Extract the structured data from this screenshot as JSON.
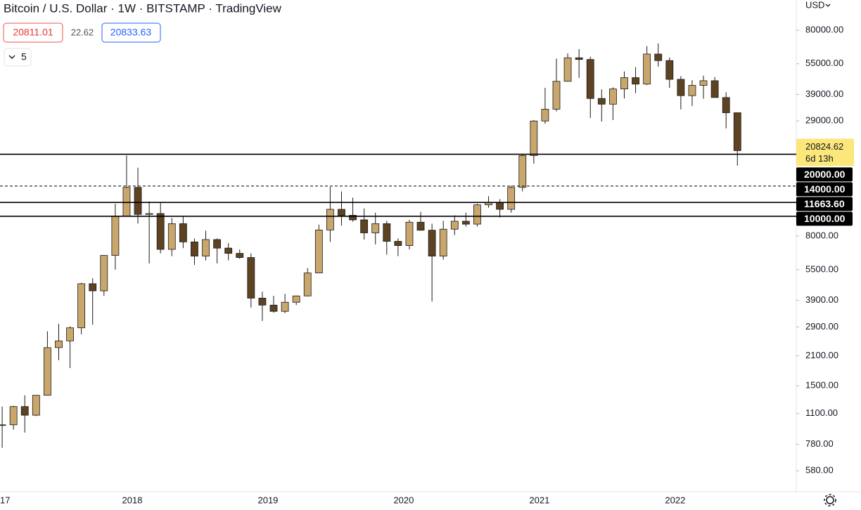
{
  "header": {
    "title": "Bitcoin / U.S. Dollar · 1W · BITSTAMP · TradingView",
    "bid": "20811.01",
    "spread": "22.62",
    "ask": "20833.63",
    "indicator_count": "5",
    "currency": "USD"
  },
  "chart_data": {
    "type": "candlestick",
    "log_scale": true,
    "up_color": "#c9a66b",
    "down_color": "#5e4322",
    "wick_color": "#1a1a1a",
    "categories": [
      "17",
      null,
      null,
      null,
      null,
      null,
      null,
      null,
      null,
      null,
      null,
      null,
      "2018",
      null,
      null,
      null,
      null,
      null,
      null,
      null,
      null,
      null,
      null,
      null,
      "2019",
      null,
      null,
      null,
      null,
      null,
      null,
      null,
      null,
      null,
      null,
      null,
      "2020",
      null,
      null,
      null,
      null,
      null,
      null,
      null,
      null,
      null,
      null,
      null,
      "2021",
      null,
      null,
      null,
      null,
      null,
      null,
      null,
      null,
      null,
      null,
      null,
      "2022",
      null,
      null,
      null,
      null,
      null
    ],
    "open": [
      963,
      970,
      1190,
      1080,
      1350,
      2300,
      2480,
      2870,
      4700,
      4340,
      6450,
      10000,
      13800,
      10200,
      10300,
      6900,
      9200,
      7500,
      6400,
      7700,
      7000,
      6600,
      6300,
      4000,
      3700,
      3450,
      3820,
      4100,
      5300,
      8570,
      10800,
      10100,
      9600,
      8300,
      9200,
      7550,
      7200,
      9350,
      8550,
      6400,
      8650,
      9450,
      9150,
      11350,
      11650,
      10800,
      13800,
      19700,
      29000,
      33100,
      45200,
      58800,
      57700,
      37300,
      35000,
      41500,
      47100,
      43800,
      61300,
      57000,
      46200,
      38500,
      43200,
      45500,
      37700,
      31800
    ],
    "high": [
      1190,
      1200,
      1350,
      1350,
      2760,
      3000,
      2920,
      4750,
      5000,
      6470,
      11500,
      19700,
      17200,
      11800,
      11700,
      9800,
      10000,
      7800,
      8500,
      7800,
      7400,
      6900,
      6600,
      4300,
      4100,
      4200,
      4120,
      5600,
      9100,
      13900,
      13200,
      12300,
      10900,
      10400,
      9500,
      7800,
      9600,
      10500,
      9200,
      9500,
      10100,
      10400,
      11500,
      12500,
      12100,
      14100,
      19900,
      29300,
      42000,
      58300,
      61800,
      64800,
      59500,
      41300,
      42300,
      50500,
      52900,
      67000,
      69000,
      59000,
      47900,
      45800,
      48200,
      47400,
      40000,
      31900
    ],
    "low": [
      750,
      920,
      890,
      1070,
      1350,
      2000,
      1830,
      2670,
      2970,
      4100,
      5500,
      10000,
      9200,
      5900,
      6600,
      6400,
      7000,
      5800,
      6100,
      5900,
      6100,
      6200,
      3600,
      3100,
      3400,
      3380,
      3700,
      4080,
      5300,
      7500,
      9000,
      9400,
      7700,
      7300,
      6500,
      6400,
      6900,
      8500,
      3850,
      6150,
      8100,
      8900,
      8900,
      11000,
      9850,
      10400,
      13200,
      18000,
      28100,
      32300,
      45000,
      47000,
      30000,
      28800,
      29300,
      37300,
      39600,
      43300,
      53300,
      42000,
      33000,
      34300,
      37200,
      37700,
      26700,
      17600
    ],
    "close": [
      970,
      1190,
      1080,
      1350,
      2300,
      2480,
      2870,
      4700,
      4340,
      6450,
      10000,
      13800,
      10200,
      10300,
      6900,
      9200,
      7500,
      6400,
      7700,
      7000,
      6600,
      6300,
      4000,
      3700,
      3450,
      3820,
      4100,
      5300,
      8570,
      10800,
      10100,
      9600,
      8300,
      9200,
      7550,
      7200,
      9350,
      8550,
      6400,
      8650,
      9450,
      9150,
      11350,
      11650,
      10800,
      13800,
      19700,
      29000,
      33100,
      45200,
      58800,
      57700,
      37300,
      35000,
      41500,
      47100,
      43800,
      61300,
      57000,
      46200,
      38500,
      43200,
      45500,
      37700,
      31800,
      20824.62
    ],
    "countdown": "6d 13h",
    "ylim": [
      459,
      112200
    ],
    "yticks": [
      {
        "value": 80000,
        "label": "80000.00"
      },
      {
        "value": 55000,
        "label": "55000.00"
      },
      {
        "value": 39000,
        "label": "39000.00"
      },
      {
        "value": 29000,
        "label": "29000.00"
      },
      {
        "value": 8000,
        "label": "8000.00"
      },
      {
        "value": 5500,
        "label": "5500.00"
      },
      {
        "value": 3900,
        "label": "3900.00"
      },
      {
        "value": 2900,
        "label": "2900.00"
      },
      {
        "value": 2100,
        "label": "2100.00"
      },
      {
        "value": 1500,
        "label": "1500.00"
      },
      {
        "value": 1100,
        "label": "1100.00"
      },
      {
        "value": 780,
        "label": "780.00"
      },
      {
        "value": 580,
        "label": "580.00"
      }
    ],
    "levels": [
      {
        "value": 20000,
        "label": "20000.00",
        "style": "solid"
      },
      {
        "value": 14000,
        "label": "14000.00",
        "style": "dashed"
      },
      {
        "value": 11663.6,
        "label": "11663.60",
        "style": "solid"
      },
      {
        "value": 10000,
        "label": "10000.00",
        "style": "solid"
      }
    ]
  }
}
